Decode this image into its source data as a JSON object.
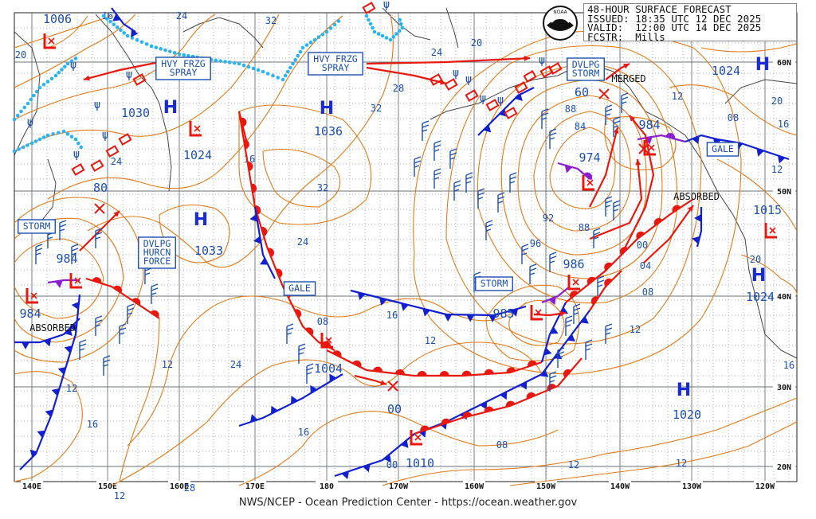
{
  "header": {
    "lines": [
      "48-HOUR SURFACE FORECAST",
      "ISSUED: 18:35 UTC 12 DEC 2025",
      "VALID:  12:00 UTC 14 DEC 2025",
      "FCSTR:  Mills"
    ],
    "logo_text": "NOAA"
  },
  "footer": "NWS/NCEP - Ocean Prediction Center - https://ocean.weather.gov",
  "highs": [
    {
      "id": "h1030",
      "label": "H",
      "pressure": "1030"
    },
    {
      "id": "h1036",
      "label": "H",
      "pressure": "1036"
    },
    {
      "id": "h1033",
      "label": "H",
      "pressure": "1033"
    },
    {
      "id": "h1024ne",
      "label": "H",
      "pressure": "1024"
    },
    {
      "id": "h1024e",
      "label": "H",
      "pressure": "1024"
    },
    {
      "id": "h1020",
      "label": "H",
      "pressure": "1020"
    }
  ],
  "lows": [
    {
      "id": "l1006",
      "pressure": "1006"
    },
    {
      "id": "l1024",
      "pressure": "1024"
    },
    {
      "id": "l984w",
      "pressure": "984"
    },
    {
      "id": "l984w2",
      "pressure": "984"
    },
    {
      "id": "l1004",
      "pressure": "1004"
    },
    {
      "id": "l1010",
      "pressure": "1010"
    },
    {
      "id": "l985",
      "pressure": "985"
    },
    {
      "id": "l986",
      "pressure": "986"
    },
    {
      "id": "l974",
      "pressure": "974"
    },
    {
      "id": "l984e",
      "pressure": "984"
    },
    {
      "id": "l1015",
      "pressure": "1015"
    },
    {
      "id": "l60",
      "pressure": "60"
    },
    {
      "id": "l80",
      "pressure": "80"
    },
    {
      "id": "l00",
      "pressure": "00"
    }
  ],
  "warnings": {
    "hvy_frzg_spray_1": [
      "HVY FRZG",
      "SPRAY"
    ],
    "hvy_frzg_spray_2": [
      "HVY FRZG",
      "SPRAY"
    ],
    "dvlpg_storm": [
      "DVLPG",
      "STORM"
    ],
    "dvlpg_hurcn": [
      "DVLPG",
      "HURCN",
      "FORCE"
    ],
    "storm_w": "STORM",
    "storm_c": "STORM",
    "gale_c": "GALE",
    "gale_e": "GALE",
    "merged": "MERGED",
    "absorbed_w": "ABSORBED",
    "absorbed_e": "ABSORBED"
  },
  "isobar_labels": [
    "16",
    "24",
    "32",
    "32",
    "28",
    "20",
    "24",
    "20",
    "24",
    "32",
    "24",
    "16",
    "12",
    "08",
    "12",
    "24",
    "12",
    "16",
    "16",
    "00",
    "08",
    "12",
    "92",
    "96",
    "88",
    "84",
    "88",
    "00",
    "04",
    "08",
    "12",
    "20",
    "16",
    "08",
    "20",
    "16",
    "12",
    "12",
    "12",
    "28",
    "16",
    "12"
  ],
  "lat_labels": [
    "60N",
    "50N",
    "40N",
    "30N",
    "20N"
  ],
  "lon_labels": [
    "140E",
    "150E",
    "160E",
    "170E",
    "180",
    "170W",
    "160W",
    "150W",
    "140W",
    "130W",
    "120W"
  ],
  "colors": {
    "isobar": "#e07a1a",
    "warm_front": "#e8180f",
    "cold_front": "#1320d0",
    "occluded": "#8a1fd0",
    "ice": "#2ab4f0",
    "label_blue": "#1c4fb0",
    "grid": "#9aa0a6"
  }
}
